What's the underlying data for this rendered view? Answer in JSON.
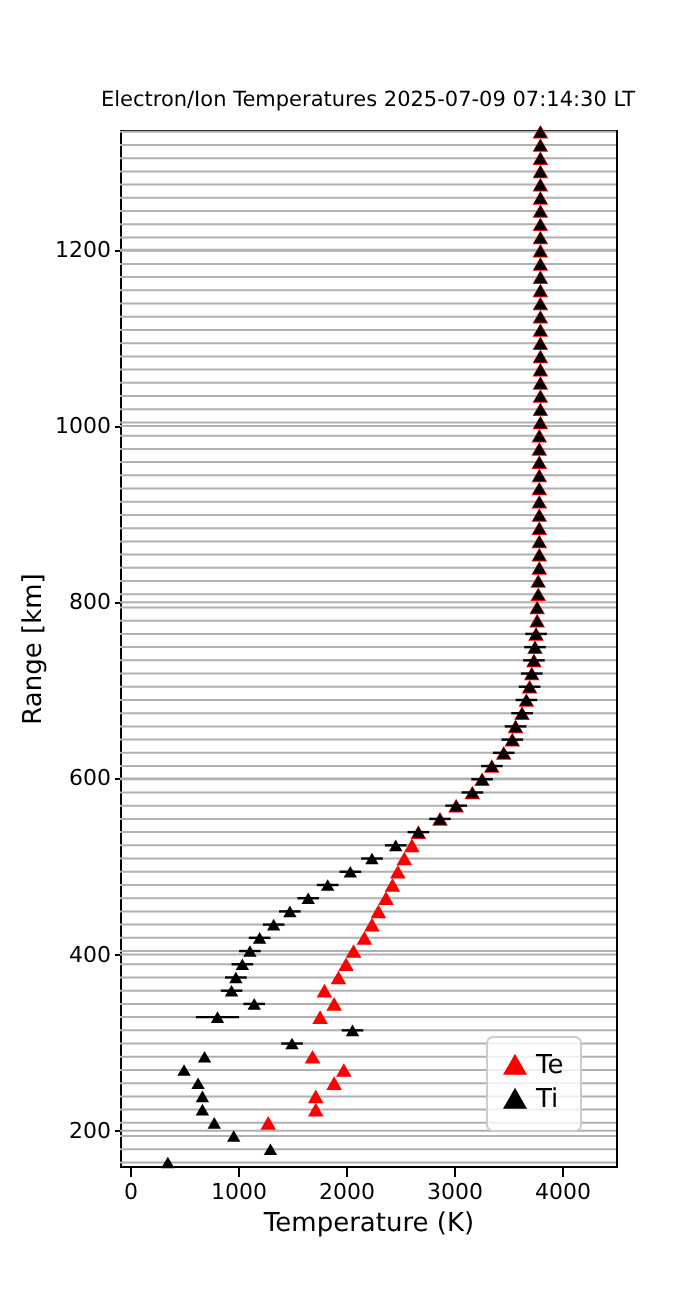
{
  "chart_data": {
    "type": "scatter",
    "title": "Electron/Ion Temperatures 2025-07-09 07:14:30 LT",
    "xlabel": "Temperature (K)",
    "ylabel": "Range [km]",
    "xlim": [
      -93,
      4500
    ],
    "xticks": [
      0,
      1000,
      2000,
      3000,
      4000
    ],
    "ylim": [
      160,
      1336
    ],
    "yticks": [
      {
        "value": 164,
        "label": null
      },
      {
        "value": 179,
        "label": null
      },
      {
        "value": 194,
        "label": null
      },
      200,
      {
        "value": 209,
        "label": null
      },
      {
        "value": 224,
        "label": null
      },
      {
        "value": 239,
        "label": null
      },
      {
        "value": 254,
        "label": null
      },
      {
        "value": 269,
        "label": null
      },
      {
        "value": 284,
        "label": null
      },
      {
        "value": 299,
        "label": null
      },
      {
        "value": 314,
        "label": null
      },
      {
        "value": 329,
        "label": null
      },
      {
        "value": 344,
        "label": null
      },
      {
        "value": 359,
        "label": null
      },
      {
        "value": 374,
        "label": null
      },
      {
        "value": 389,
        "label": null
      },
      400,
      {
        "value": 404,
        "label": null
      },
      {
        "value": 419,
        "label": null
      },
      {
        "value": 434,
        "label": null
      },
      {
        "value": 449,
        "label": null
      },
      {
        "value": 464,
        "label": null
      },
      {
        "value": 479,
        "label": null
      },
      {
        "value": 494,
        "label": null
      },
      {
        "value": 509,
        "label": null
      },
      {
        "value": 524,
        "label": null
      },
      {
        "value": 539,
        "label": null
      },
      {
        "value": 554,
        "label": null
      },
      {
        "value": 569,
        "label": null
      },
      {
        "value": 584,
        "label": null
      },
      {
        "value": 599,
        "label": null
      },
      600,
      {
        "value": 614,
        "label": null
      },
      {
        "value": 629,
        "label": null
      },
      {
        "value": 644,
        "label": null
      },
      {
        "value": 659,
        "label": null
      },
      {
        "value": 674,
        "label": null
      },
      {
        "value": 689,
        "label": null
      },
      {
        "value": 704,
        "label": null
      },
      {
        "value": 719,
        "label": null
      },
      {
        "value": 734,
        "label": null
      },
      {
        "value": 749,
        "label": null
      },
      {
        "value": 764,
        "label": null
      },
      {
        "value": 779,
        "label": null
      },
      {
        "value": 794,
        "label": null
      },
      800,
      {
        "value": 809,
        "label": null
      },
      {
        "value": 824,
        "label": null
      },
      {
        "value": 839,
        "label": null
      },
      {
        "value": 854,
        "label": null
      },
      {
        "value": 869,
        "label": null
      },
      {
        "value": 884,
        "label": null
      },
      {
        "value": 899,
        "label": null
      },
      {
        "value": 914,
        "label": null
      },
      {
        "value": 929,
        "label": null
      },
      {
        "value": 944,
        "label": null
      },
      {
        "value": 959,
        "label": null
      },
      {
        "value": 974,
        "label": null
      },
      {
        "value": 989,
        "label": null
      },
      1000,
      {
        "value": 1004,
        "label": null
      },
      {
        "value": 1019,
        "label": null
      },
      {
        "value": 1034,
        "label": null
      },
      {
        "value": 1049,
        "label": null
      },
      {
        "value": 1064,
        "label": null
      },
      {
        "value": 1079,
        "label": null
      },
      {
        "value": 1094,
        "label": null
      },
      {
        "value": 1109,
        "label": null
      },
      {
        "value": 1124,
        "label": null
      },
      {
        "value": 1139,
        "label": null
      },
      {
        "value": 1154,
        "label": null
      },
      {
        "value": 1169,
        "label": null
      },
      {
        "value": 1184,
        "label": null
      },
      {
        "value": 1199,
        "label": null
      },
      1200,
      {
        "value": 1214,
        "label": null
      },
      {
        "value": 1229,
        "label": null
      },
      {
        "value": 1244,
        "label": null
      },
      {
        "value": 1259,
        "label": null
      },
      {
        "value": 1274,
        "label": null
      },
      {
        "value": 1289,
        "label": null
      },
      {
        "value": 1304,
        "label": null
      },
      {
        "value": 1319,
        "label": null
      },
      {
        "value": 1334,
        "label": null
      }
    ],
    "grid": "y",
    "legend": "bottom right",
    "marker": "triangle",
    "series": [
      {
        "name": "Te",
        "color": "#ff0000",
        "x": [
          1280,
          1720,
          1720,
          1890,
          1980,
          1690,
          1760,
          1890,
          1800,
          1930,
          2000,
          2070,
          2170,
          2240,
          2300,
          2370,
          2430,
          2480,
          2540,
          2610,
          2670,
          2870,
          3020,
          3170,
          3260,
          3350,
          3460,
          3540,
          3570,
          3630,
          3670,
          3700,
          3720,
          3740,
          3750,
          3760,
          3770,
          3770,
          3780,
          3780,
          3790,
          3790,
          3790,
          3790,
          3790,
          3790,
          3790,
          3790,
          3790,
          3790,
          3790,
          3800,
          3800,
          3800,
          3800,
          3800,
          3800,
          3800,
          3800,
          3800,
          3800,
          3800,
          3800,
          3800,
          3800,
          3800,
          3800,
          3800,
          3800,
          3800,
          3800,
          3800,
          3800,
          3800
        ],
        "values": [
          209,
          224,
          239,
          254,
          269,
          284,
          329,
          344,
          359,
          374,
          389,
          404,
          419,
          434,
          449,
          464,
          479,
          494,
          509,
          524,
          539,
          554,
          569,
          584,
          599,
          614,
          629,
          644,
          659,
          674,
          689,
          704,
          719,
          734,
          749,
          764,
          779,
          794,
          809,
          824,
          839,
          854,
          869,
          884,
          899,
          914,
          929,
          944,
          959,
          974,
          989,
          1004,
          1019,
          1034,
          1049,
          1064,
          1079,
          1094,
          1109,
          1124,
          1139,
          1154,
          1169,
          1184,
          1199,
          1214,
          1229,
          1244,
          1259,
          1274,
          1289,
          1304,
          1319,
          1334
        ]
      },
      {
        "name": "Ti",
        "color": "#000000",
        "x": [
          350,
          1300,
          960,
          780,
          670,
          670,
          630,
          500,
          690,
          1500,
          2060,
          810,
          1150,
          940,
          980,
          1040,
          1110,
          1200,
          1330,
          1480,
          1650,
          1830,
          2040,
          2240,
          2460,
          2670,
          2870,
          3020,
          3170,
          3260,
          3350,
          3460,
          3540,
          3570,
          3630,
          3670,
          3700,
          3720,
          3740,
          3750,
          3760,
          3770,
          3770,
          3780,
          3780,
          3790,
          3790,
          3790,
          3790,
          3790,
          3790,
          3790,
          3790,
          3790,
          3790,
          3790,
          3800,
          3800,
          3800,
          3800,
          3800,
          3800,
          3800,
          3800,
          3800,
          3800,
          3800,
          3800,
          3800,
          3800,
          3800,
          3800,
          3800,
          3800,
          3800,
          3800,
          3800,
          3800,
          3800
        ],
        "values": [
          164,
          179,
          194,
          209,
          224,
          239,
          254,
          269,
          284,
          299,
          314,
          329,
          344,
          359,
          374,
          389,
          404,
          419,
          434,
          449,
          464,
          479,
          494,
          509,
          524,
          539,
          554,
          569,
          584,
          599,
          614,
          629,
          644,
          659,
          674,
          689,
          704,
          719,
          734,
          749,
          764,
          779,
          794,
          809,
          824,
          839,
          854,
          869,
          884,
          899,
          914,
          929,
          944,
          959,
          974,
          989,
          1004,
          1019,
          1034,
          1049,
          1064,
          1079,
          1094,
          1109,
          1124,
          1139,
          1154,
          1169,
          1184,
          1199,
          1214,
          1229,
          1244,
          1259,
          1274,
          1289,
          1304,
          1319,
          1334
        ],
        "xerrors": [
          null,
          null,
          null,
          null,
          null,
          null,
          null,
          null,
          null,
          100,
          100,
          200,
          100,
          100,
          100,
          100,
          100,
          100,
          100,
          100,
          100,
          100,
          100,
          100,
          100,
          100,
          100,
          100,
          100,
          100,
          100,
          100,
          100,
          100,
          100,
          100,
          100,
          100,
          100,
          100,
          100,
          null,
          null,
          null,
          null,
          null,
          null,
          null,
          null,
          null,
          null,
          null,
          null,
          null,
          null,
          null,
          null,
          null,
          null,
          null,
          null,
          null,
          null,
          null,
          null,
          null,
          null,
          null,
          null,
          null,
          null,
          null,
          null,
          null,
          null,
          null,
          null,
          null,
          null
        ]
      }
    ]
  }
}
